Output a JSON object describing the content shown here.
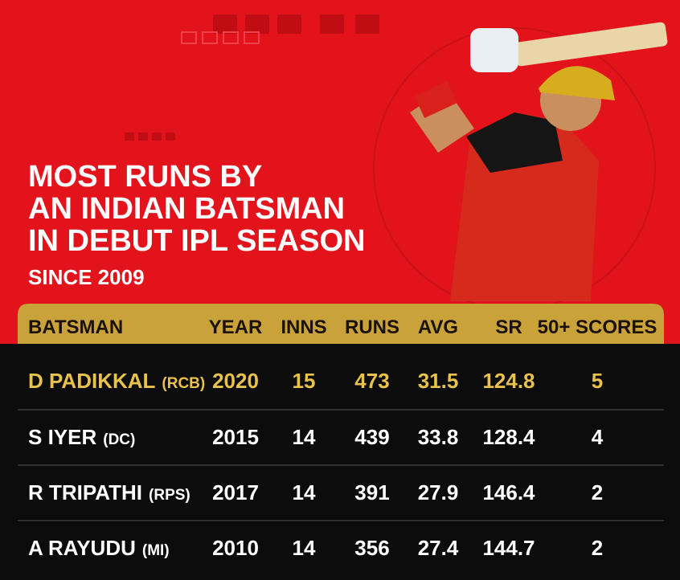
{
  "header": {
    "title_lines": [
      "MOST RUNS BY",
      "AN INDIAN BATSMAN",
      "IN DEBUT IPL SEASON"
    ],
    "subtitle": "SINCE 2009"
  },
  "table": {
    "columns": [
      "BATSMAN",
      "YEAR",
      "INNS",
      "RUNS",
      "AVG",
      "SR",
      "50+ SCORES"
    ],
    "rows": [
      {
        "name": "D PADIKKAL",
        "team": "(RCB)",
        "cells": [
          "2020",
          "15",
          "473",
          "31.5",
          "124.8",
          "5"
        ]
      },
      {
        "name": "S IYER",
        "team": "(DC)",
        "cells": [
          "2015",
          "14",
          "439",
          "33.8",
          "128.4",
          "4"
        ]
      },
      {
        "name": "R TRIPATHI",
        "team": "(RPS)",
        "cells": [
          "2017",
          "14",
          "391",
          "27.9",
          "146.4",
          "2"
        ]
      },
      {
        "name": "A RAYUDU",
        "team": "(MI)",
        "cells": [
          "2010",
          "14",
          "356",
          "27.4",
          "144.7",
          "2"
        ]
      }
    ]
  }
}
